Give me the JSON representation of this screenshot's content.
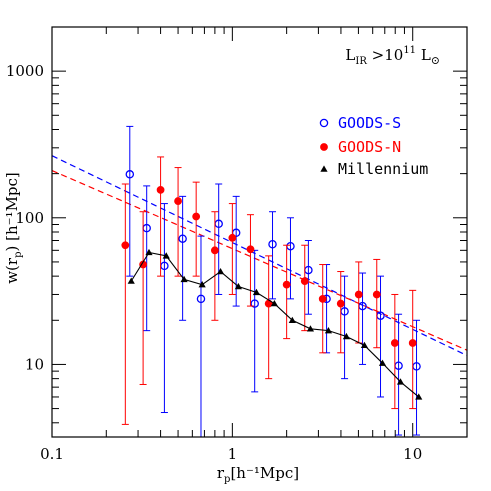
{
  "chart_data": {
    "type": "scatter",
    "title": "",
    "annotation": {
      "main": "L",
      "main_sub": "IR",
      "relation": " >10",
      "exponent": "11",
      "unit": " L",
      "unit_sub": "⊙"
    },
    "xlabel": {
      "main": "r",
      "sub": "p",
      "rest": "[h⁻¹Mpc]"
    },
    "ylabel": {
      "main": "w(r",
      "sub": "p",
      "rest": ") [h⁻¹Mpc]"
    },
    "x_scale": "log",
    "y_scale": "log",
    "xlim": [
      0.1,
      20
    ],
    "ylim": [
      3.2,
      2000
    ],
    "x_ticks": [
      {
        "value": 0.1,
        "label": "0.1"
      },
      {
        "value": 1,
        "label": "1"
      },
      {
        "value": 10,
        "label": "10"
      }
    ],
    "y_ticks": [
      {
        "value": 10,
        "label": "10"
      },
      {
        "value": 100,
        "label": "100"
      },
      {
        "value": 1000,
        "label": "1000"
      }
    ],
    "grid": false,
    "legend_position": "top-right",
    "series": [
      {
        "name": "GOODS-S",
        "marker": "open-circle",
        "color": "#0000ff",
        "points": [
          {
            "x": 0.27,
            "y": 198,
            "lo": 40,
            "hi": 420
          },
          {
            "x": 0.335,
            "y": 85,
            "lo": 17,
            "hi": 165
          },
          {
            "x": 0.42,
            "y": 47,
            "lo": 4.7,
            "hi": 125
          },
          {
            "x": 0.53,
            "y": 72,
            "lo": 20,
            "hi": 140
          },
          {
            "x": 0.67,
            "y": 28,
            "lo": 3.2,
            "hi": 75
          },
          {
            "x": 0.84,
            "y": 91,
            "lo": 30,
            "hi": 170
          },
          {
            "x": 1.05,
            "y": 79,
            "lo": 25,
            "hi": 140
          },
          {
            "x": 1.33,
            "y": 26,
            "lo": 6.5,
            "hi": 60
          },
          {
            "x": 1.67,
            "y": 66,
            "lo": 28,
            "hi": 110
          },
          {
            "x": 2.1,
            "y": 64,
            "lo": 28,
            "hi": 100
          },
          {
            "x": 2.64,
            "y": 44,
            "lo": 22,
            "hi": 70
          },
          {
            "x": 3.33,
            "y": 28,
            "lo": 12,
            "hi": 48
          },
          {
            "x": 4.19,
            "y": 23,
            "lo": 8,
            "hi": 40
          },
          {
            "x": 5.27,
            "y": 25,
            "lo": 10,
            "hi": 42
          },
          {
            "x": 6.63,
            "y": 21.5,
            "lo": 6,
            "hi": 40
          },
          {
            "x": 8.35,
            "y": 9.8,
            "lo": 3.3,
            "hi": 22
          },
          {
            "x": 10.5,
            "y": 9.7,
            "lo": 3.3,
            "hi": 20
          }
        ]
      },
      {
        "name": "GOODS-N",
        "marker": "filled-circle",
        "color": "#ff0000",
        "points": [
          {
            "x": 0.255,
            "y": 65,
            "lo": 3.9,
            "hi": 170
          },
          {
            "x": 0.32,
            "y": 48,
            "lo": 7.3,
            "hi": 110
          },
          {
            "x": 0.4,
            "y": 155,
            "lo": 40,
            "hi": 260
          },
          {
            "x": 0.5,
            "y": 130,
            "lo": 40,
            "hi": 220
          },
          {
            "x": 0.63,
            "y": 102,
            "lo": 40,
            "hi": 175
          },
          {
            "x": 0.8,
            "y": 60,
            "lo": 20,
            "hi": 110
          },
          {
            "x": 1.0,
            "y": 73,
            "lo": 30,
            "hi": 125
          },
          {
            "x": 1.26,
            "y": 61,
            "lo": 25,
            "hi": 105
          },
          {
            "x": 1.59,
            "y": 26,
            "lo": 8,
            "hi": 55
          },
          {
            "x": 2.0,
            "y": 35,
            "lo": 15,
            "hi": 65
          },
          {
            "x": 2.52,
            "y": 37,
            "lo": 17,
            "hi": 65
          },
          {
            "x": 3.17,
            "y": 28,
            "lo": 12,
            "hi": 48
          },
          {
            "x": 3.99,
            "y": 26,
            "lo": 12,
            "hi": 43
          },
          {
            "x": 5.02,
            "y": 30,
            "lo": 14,
            "hi": 50
          },
          {
            "x": 6.32,
            "y": 30,
            "lo": 13,
            "hi": 52
          },
          {
            "x": 7.96,
            "y": 14,
            "lo": 5,
            "hi": 30
          },
          {
            "x": 10.0,
            "y": 14,
            "lo": 5,
            "hi": 32
          }
        ]
      },
      {
        "name": "Millennium",
        "marker": "filled-triangle",
        "color": "#000000",
        "connected": true,
        "points": [
          {
            "x": 0.275,
            "y": 37
          },
          {
            "x": 0.345,
            "y": 58
          },
          {
            "x": 0.43,
            "y": 55
          },
          {
            "x": 0.54,
            "y": 38
          },
          {
            "x": 0.68,
            "y": 35
          },
          {
            "x": 0.86,
            "y": 43
          },
          {
            "x": 1.08,
            "y": 34
          },
          {
            "x": 1.36,
            "y": 31
          },
          {
            "x": 1.71,
            "y": 26
          },
          {
            "x": 2.15,
            "y": 20
          },
          {
            "x": 2.71,
            "y": 17.5
          },
          {
            "x": 3.41,
            "y": 17
          },
          {
            "x": 4.29,
            "y": 15.5
          },
          {
            "x": 5.4,
            "y": 13.5
          },
          {
            "x": 6.8,
            "y": 10.2
          },
          {
            "x": 8.56,
            "y": 7.6
          },
          {
            "x": 10.8,
            "y": 6.0
          }
        ]
      }
    ],
    "fit_lines": [
      {
        "color": "#0000ff",
        "style": "dashed",
        "from": [
          0.1,
          265
        ],
        "to": [
          20,
          11.5
        ]
      },
      {
        "color": "#ff0000",
        "style": "dashed",
        "from": [
          0.1,
          210
        ],
        "to": [
          20,
          12.5
        ]
      }
    ]
  }
}
